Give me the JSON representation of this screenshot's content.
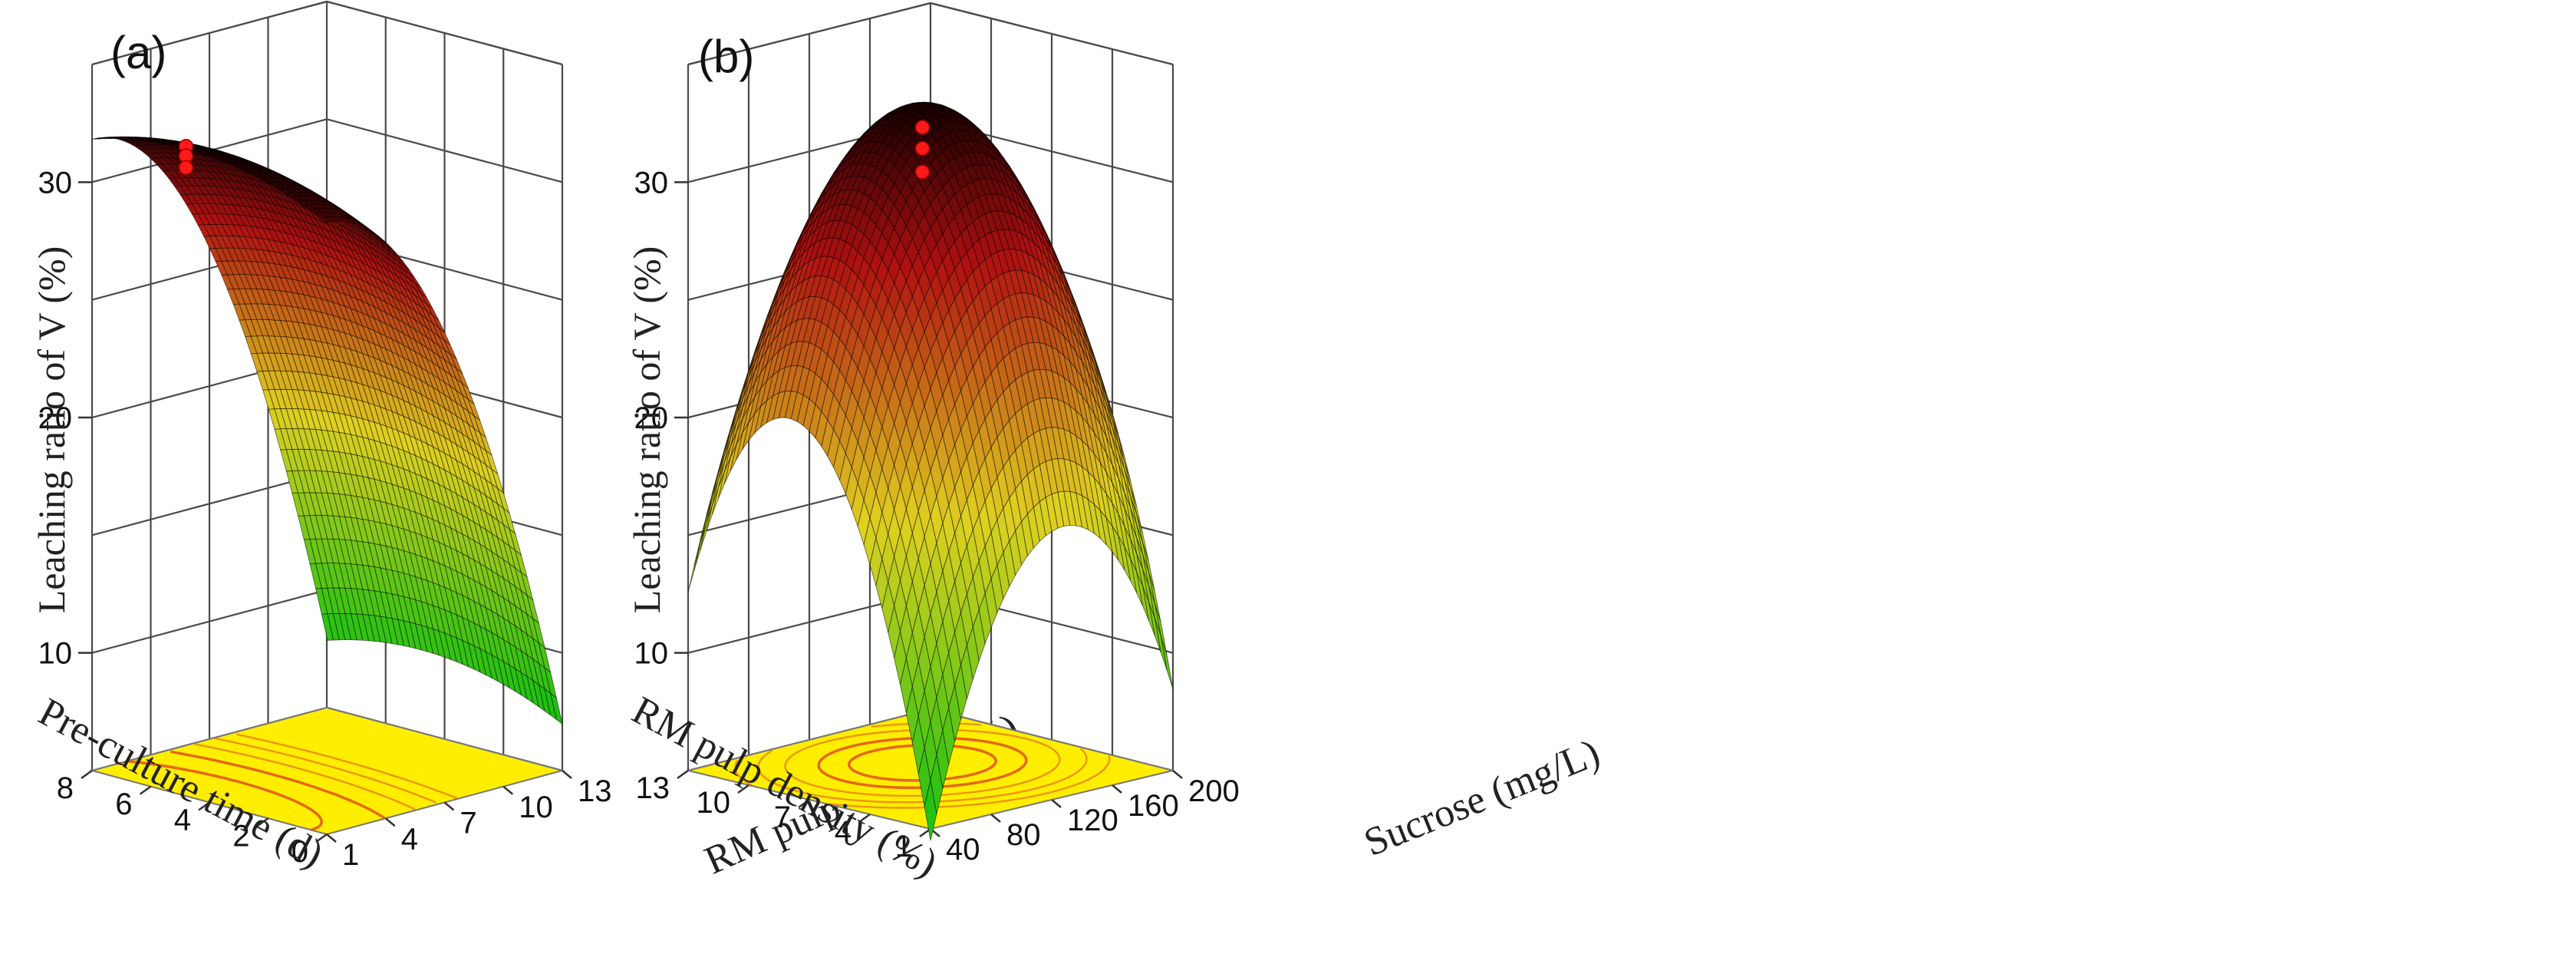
{
  "colors": {
    "floor": "#ffee00",
    "contour": "#e05a1e",
    "surface_low": "#10c010",
    "surface_mid": "#e0d020",
    "surface_high": "#b01010",
    "surface_top": "#1a0000",
    "point": "#ff1a1a",
    "grid": "#4a4a4a"
  },
  "chart_data": [
    {
      "type": "surface3d",
      "panel_label": "(a)",
      "zlabel": "Leaching ratio of V (%)",
      "left_axis_label": "Pre-culture time (d)",
      "right_axis_label": "RM pulp density (%)",
      "z_ticks": [
        "10",
        "20",
        "30"
      ],
      "left_ticks": [
        "0",
        "2",
        "4",
        "6",
        "8"
      ],
      "right_ticks": [
        "1",
        "4",
        "7",
        "10",
        "13"
      ],
      "zlim": [
        5,
        35
      ],
      "left_range": [
        0,
        8
      ],
      "right_range": [
        1,
        13
      ],
      "response_model": {
        "intercept": 32.5,
        "left_center": 4.8,
        "left_scale": 5.5,
        "left_coef": 2.0,
        "right_center": 1.0,
        "right_scale": 12.0,
        "right_coef": 24.0
      },
      "design_points_z": [
        32.6,
        32.2,
        31.7
      ],
      "contour_levels": [
        31.3,
        29.5,
        27.5,
        25.5,
        23.5
      ]
    },
    {
      "type": "surface3d",
      "panel_label": "(b)",
      "zlabel": "Leaching ratio of V (%)",
      "left_axis_label": "RM pulp density (%)",
      "right_axis_label": "Sucrose (mg/L)",
      "z_ticks": [
        "10",
        "20",
        "30"
      ],
      "left_ticks": [
        "1",
        "4",
        "7",
        "10",
        "13"
      ],
      "right_ticks": [
        "40",
        "80",
        "120",
        "160",
        "200"
      ],
      "zlim": [
        5,
        35
      ],
      "left_range": [
        1,
        13
      ],
      "right_range": [
        40,
        200
      ],
      "response_model": {
        "intercept": 33.0,
        "left_center": 8.0,
        "left_scale": 7.0,
        "left_coef": 16.5,
        "right_center": 128.0,
        "right_scale": 88.0,
        "right_coef": 12.0
      },
      "design_points_z": [
        32.0,
        31.1,
        30.1
      ],
      "contour_levels": [
        31.0,
        29.0,
        26.0,
        23.0,
        20.0
      ]
    }
  ]
}
